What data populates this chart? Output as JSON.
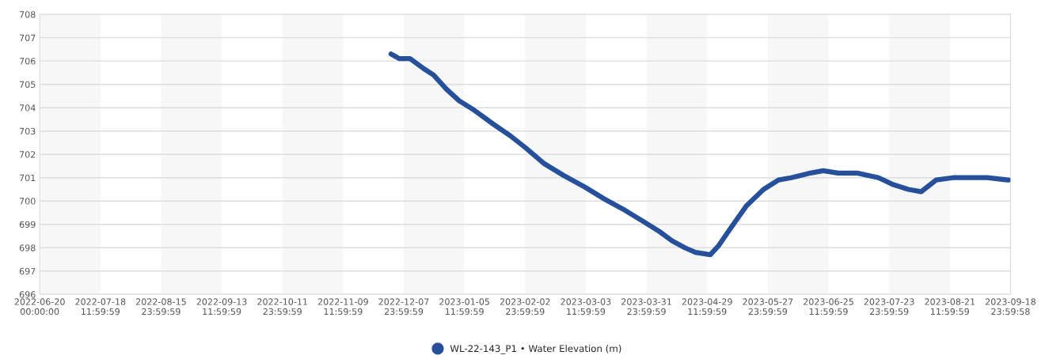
{
  "chart_data": {
    "type": "line",
    "x": [
      "2022-12-02",
      "2022-12-06",
      "2022-12-11",
      "2022-12-17",
      "2022-12-22",
      "2022-12-28",
      "2023-01-03",
      "2023-01-10",
      "2023-01-19",
      "2023-01-27",
      "2023-02-03",
      "2023-02-12",
      "2023-02-21",
      "2023-03-03",
      "2023-03-12",
      "2023-03-22",
      "2023-03-31",
      "2023-04-07",
      "2023-04-13",
      "2023-04-19",
      "2023-04-24",
      "2023-05-01",
      "2023-05-05",
      "2023-05-11",
      "2023-05-18",
      "2023-05-26",
      "2023-06-02",
      "2023-06-08",
      "2023-06-17",
      "2023-06-23",
      "2023-06-30",
      "2023-07-09",
      "2023-07-19",
      "2023-07-26",
      "2023-08-02",
      "2023-08-08",
      "2023-08-15",
      "2023-08-23",
      "2023-08-30",
      "2023-09-08",
      "2023-09-18"
    ],
    "series": [
      {
        "name": "WL-22-143_P1 • Water Elevation (m)",
        "color": "#27509b",
        "values": [
          706.3,
          706.1,
          706.1,
          705.7,
          705.4,
          704.8,
          704.3,
          703.9,
          703.3,
          702.8,
          702.3,
          701.6,
          701.1,
          700.6,
          700.1,
          699.6,
          699.1,
          698.7,
          698.3,
          698.0,
          697.8,
          697.7,
          698.1,
          698.9,
          699.8,
          700.5,
          700.9,
          701.0,
          701.2,
          701.3,
          701.2,
          701.2,
          701.0,
          700.7,
          700.5,
          700.4,
          700.9,
          701.0,
          701.0,
          701.0,
          700.9
        ]
      }
    ],
    "xlim": [
      "2022-06-20T00:00",
      "2023-09-18T23:59"
    ],
    "xticks": [
      {
        "value": "2022-06-20T00:00",
        "label": "2022-06-20\n00:00:00"
      },
      {
        "value": "2022-07-18T11:59",
        "label": "2022-07-18\n11:59:59"
      },
      {
        "value": "2022-08-15T23:59",
        "label": "2022-08-15\n23:59:59"
      },
      {
        "value": "2022-09-13T11:59",
        "label": "2022-09-13\n11:59:59"
      },
      {
        "value": "2022-10-11T23:59",
        "label": "2022-10-11\n23:59:59"
      },
      {
        "value": "2022-11-09T11:59",
        "label": "2022-11-09\n11:59:59"
      },
      {
        "value": "2022-12-07T23:59",
        "label": "2022-12-07\n23:59:59"
      },
      {
        "value": "2023-01-05T11:59",
        "label": "2023-01-05\n11:59:59"
      },
      {
        "value": "2023-02-02T23:59",
        "label": "2023-02-02\n23:59:59"
      },
      {
        "value": "2023-03-03T11:59",
        "label": "2023-03-03\n11:59:59"
      },
      {
        "value": "2023-03-31T23:59",
        "label": "2023-03-31\n23:59:59"
      },
      {
        "value": "2023-04-29T11:59",
        "label": "2023-04-29\n11:59:59"
      },
      {
        "value": "2023-05-27T23:59",
        "label": "2023-05-27\n23:59:59"
      },
      {
        "value": "2023-06-25T11:59",
        "label": "2023-06-25\n11:59:59"
      },
      {
        "value": "2023-07-23T23:59",
        "label": "2023-07-23\n23:59:59"
      },
      {
        "value": "2023-08-21T11:59",
        "label": "2023-08-21\n11:59:59"
      },
      {
        "value": "2023-09-18T23:59",
        "label": "2023-09-18\n23:59:58"
      }
    ],
    "ylim": [
      696,
      708
    ],
    "yticks": [
      696,
      697,
      698,
      699,
      700,
      701,
      702,
      703,
      704,
      705,
      706,
      707,
      708
    ],
    "bands": [
      {
        "axis": "x",
        "from": "2022-06-20T00:00",
        "to": "2022-07-18T11:59",
        "color": "#f7f7f7"
      },
      {
        "axis": "x",
        "from": "2022-08-15T23:59",
        "to": "2022-09-13T11:59",
        "color": "#f7f7f7"
      },
      {
        "axis": "x",
        "from": "2022-10-11T23:59",
        "to": "2022-11-09T11:59",
        "color": "#f7f7f7"
      },
      {
        "axis": "x",
        "from": "2022-12-07T23:59",
        "to": "2023-01-05T11:59",
        "color": "#f7f7f7"
      },
      {
        "axis": "x",
        "from": "2023-02-02T23:59",
        "to": "2023-03-03T11:59",
        "color": "#f7f7f7"
      },
      {
        "axis": "x",
        "from": "2023-03-31T23:59",
        "to": "2023-04-29T11:59",
        "color": "#f7f7f7"
      },
      {
        "axis": "x",
        "from": "2023-05-27T23:59",
        "to": "2023-06-25T11:59",
        "color": "#f7f7f7"
      },
      {
        "axis": "x",
        "from": "2023-07-23T23:59",
        "to": "2023-08-21T11:59",
        "color": "#f7f7f7"
      }
    ],
    "grid": "y",
    "legend": "bottom",
    "line_style": "solid"
  }
}
